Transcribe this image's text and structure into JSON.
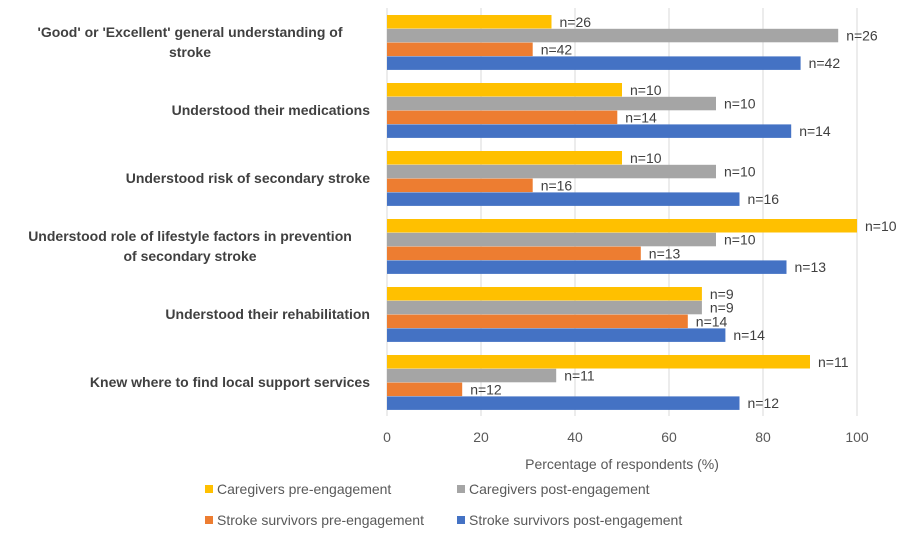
{
  "chart_data": {
    "type": "bar",
    "orientation": "horizontal",
    "xlabel": "Percentage of respondents (%)",
    "ylabel": "",
    "xlim": [
      0,
      100
    ],
    "x_ticks": [
      0,
      20,
      40,
      60,
      80,
      100
    ],
    "grid": true,
    "legend_position": "bottom",
    "categories": [
      "'Good' or 'Excellent' general understanding of stroke",
      "Understood their medications",
      "Understood risk of secondary stroke",
      "Understood role of lifestyle factors in prevention of secondary stroke",
      "Understood their rehabilitation",
      "Knew where to find local support services"
    ],
    "series": [
      {
        "name": "Caregivers pre-engagement",
        "color": "#FFC000",
        "values": [
          35,
          50,
          50,
          100,
          67,
          90
        ],
        "labels": [
          "n=26",
          "n=10",
          "n=10",
          "n=10",
          "n=9",
          "n=11"
        ]
      },
      {
        "name": "Caregivers post-engagement",
        "color": "#A5A5A5",
        "values": [
          96,
          70,
          70,
          70,
          67,
          36
        ],
        "labels": [
          "n=26",
          "n=10",
          "n=10",
          "n=10",
          "n=9",
          "n=11"
        ]
      },
      {
        "name": "Stroke survivors pre-engagement",
        "color": "#ED7D31",
        "values": [
          31,
          49,
          31,
          54,
          64,
          16
        ],
        "labels": [
          "n=42",
          "n=14",
          "n=16",
          "n=13",
          "n=14",
          "n=12"
        ]
      },
      {
        "name": "Stroke survivors post-engagement",
        "color": "#4472C4",
        "values": [
          88,
          86,
          75,
          85,
          72,
          75
        ],
        "labels": [
          "n=42",
          "n=14",
          "n=16",
          "n=13",
          "n=14",
          "n=12"
        ]
      }
    ],
    "legend_rows": [
      [
        "Caregivers pre-engagement",
        "Caregivers post-engagement"
      ],
      [
        "Stroke survivors pre-engagement",
        "Stroke survivors post-engagement"
      ]
    ]
  }
}
